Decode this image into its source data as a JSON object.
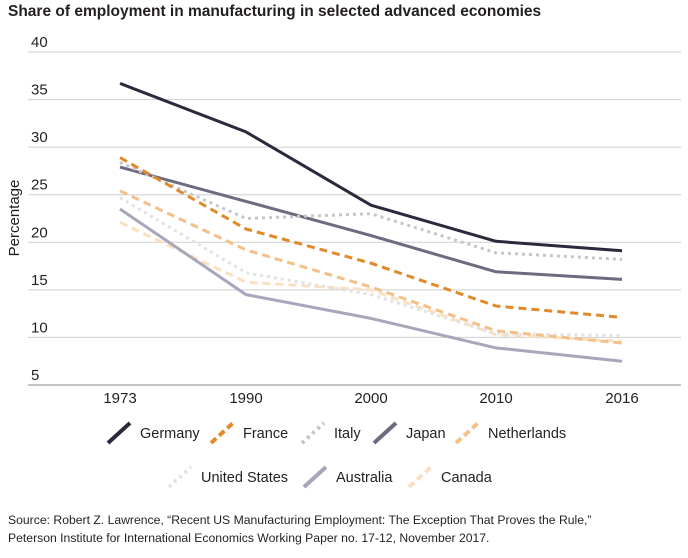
{
  "title": "Share of employment in manufacturing in selected advanced economies",
  "source": {
    "line1": "Source: Robert Z. Lawrence, “Recent US Manufacturing Employment: The Exception That Proves the Rule,”",
    "line2": "Peterson Institute for International Economics Working Paper no. 17-12, November 2017."
  },
  "chart_data": {
    "type": "line",
    "title": "Share of employment in manufacturing in selected advanced economies",
    "xlabel": "",
    "ylabel": "Percentage",
    "categories": [
      "1973",
      "1990",
      "2000",
      "2010",
      "2016"
    ],
    "ylim": [
      5,
      40
    ],
    "yticks": [
      5,
      10,
      15,
      20,
      25,
      30,
      35,
      40
    ],
    "grid": true,
    "legend_position": "bottom",
    "series": [
      {
        "name": "Germany",
        "values": [
          36.7,
          31.6,
          23.9,
          20.1,
          19.1
        ],
        "color": "#2b2a3d",
        "dash": "solid",
        "width": 3
      },
      {
        "name": "France",
        "values": [
          28.9,
          21.4,
          17.8,
          13.3,
          12.1
        ],
        "color": "#e08a2c",
        "dash": "dash",
        "width": 3
      },
      {
        "name": "Italy",
        "values": [
          28.4,
          22.5,
          23.0,
          18.9,
          18.2
        ],
        "color": "#c6c6c6",
        "dash": "dot",
        "width": 3
      },
      {
        "name": "Japan",
        "values": [
          27.9,
          24.3,
          20.7,
          16.9,
          16.1
        ],
        "color": "#6e6a80",
        "dash": "solid",
        "width": 3
      },
      {
        "name": "Netherlands",
        "values": [
          25.4,
          19.2,
          15.3,
          10.7,
          9.4
        ],
        "color": "#f3c08a",
        "dash": "dash",
        "width": 3
      },
      {
        "name": "United States",
        "values": [
          24.7,
          16.8,
          14.5,
          10.4,
          10.2
        ],
        "color": "#e2e2e2",
        "dash": "dot",
        "width": 3
      },
      {
        "name": "Australia",
        "values": [
          23.5,
          14.5,
          12.0,
          8.9,
          7.5
        ],
        "color": "#a9a5ba",
        "dash": "solid",
        "width": 3
      },
      {
        "name": "Canada",
        "values": [
          22.1,
          15.8,
          15.0,
          10.3,
          9.6
        ],
        "color": "#fae0c2",
        "dash": "dash",
        "width": 3
      }
    ]
  }
}
